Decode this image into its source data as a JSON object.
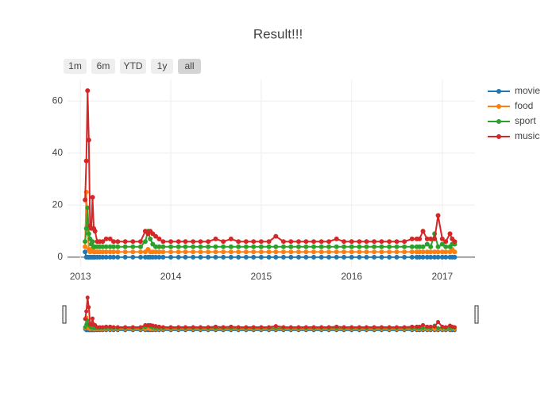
{
  "chart_data": {
    "type": "line",
    "title": "Result!!!",
    "range_buttons": [
      "1m",
      "6m",
      "YTD",
      "1y",
      "all"
    ],
    "active_button": 4,
    "xlim": [
      "2012-11-10",
      "2017-05-13"
    ],
    "xticks": [
      {
        "value": "2013-01-01",
        "label": "2013"
      },
      {
        "value": "2014-01-01",
        "label": "2014"
      },
      {
        "value": "2015-01-01",
        "label": "2015"
      },
      {
        "value": "2016-01-01",
        "label": "2016"
      },
      {
        "value": "2017-01-01",
        "label": "2017"
      }
    ],
    "ylim": [
      -3.4,
      68.3
    ],
    "yticks": [
      0,
      20,
      40,
      60
    ],
    "grid": true,
    "x": [
      "2013-01-20",
      "2013-01-25",
      "2013-01-30",
      "2013-02-04",
      "2013-02-09",
      "2013-02-14",
      "2013-02-19",
      "2013-02-24",
      "2013-03-01",
      "2013-03-10",
      "2013-03-20",
      "2013-04-01",
      "2013-04-15",
      "2013-05-01",
      "2013-05-15",
      "2013-06-01",
      "2013-07-01",
      "2013-08-01",
      "2013-09-01",
      "2013-09-20",
      "2013-10-01",
      "2013-10-10",
      "2013-10-20",
      "2013-11-01",
      "2013-11-15",
      "2013-12-01",
      "2014-01-01",
      "2014-02-01",
      "2014-03-01",
      "2014-04-01",
      "2014-05-01",
      "2014-06-01",
      "2014-07-01",
      "2014-08-01",
      "2014-09-01",
      "2014-10-01",
      "2014-11-01",
      "2014-12-01",
      "2015-01-01",
      "2015-02-01",
      "2015-03-01",
      "2015-04-01",
      "2015-05-01",
      "2015-06-01",
      "2015-07-01",
      "2015-08-01",
      "2015-09-01",
      "2015-10-01",
      "2015-11-01",
      "2015-12-01",
      "2016-01-01",
      "2016-02-01",
      "2016-03-01",
      "2016-04-01",
      "2016-05-01",
      "2016-06-01",
      "2016-07-01",
      "2016-08-01",
      "2016-09-01",
      "2016-09-20",
      "2016-10-01",
      "2016-10-15",
      "2016-11-01",
      "2016-11-15",
      "2016-12-01",
      "2016-12-15",
      "2017-01-01",
      "2017-01-15",
      "2017-02-01",
      "2017-02-10",
      "2017-02-20"
    ],
    "series": [
      {
        "name": "movie",
        "color": "#1f77b4",
        "values": [
          2,
          0,
          0,
          0,
          0,
          0,
          0,
          0,
          0,
          0,
          0,
          0,
          0,
          0,
          0,
          0,
          0,
          0,
          0,
          0,
          0,
          0,
          0,
          0,
          0,
          0,
          0,
          0,
          0,
          0,
          0,
          0,
          0,
          0,
          0,
          0,
          0,
          0,
          0,
          0,
          0,
          0,
          0,
          0,
          0,
          0,
          0,
          0,
          0,
          0,
          0,
          0,
          0,
          0,
          0,
          0,
          0,
          0,
          0,
          0,
          0,
          0,
          0,
          0,
          0,
          0,
          0,
          0,
          0,
          0,
          0
        ]
      },
      {
        "name": "food",
        "color": "#ff7f0e",
        "values": [
          4,
          25,
          12,
          3,
          2,
          3,
          3,
          2,
          2,
          2,
          2,
          2,
          2,
          2,
          2,
          2,
          2,
          2,
          2,
          2,
          3,
          2,
          2,
          2,
          2,
          2,
          2,
          2,
          2,
          2,
          2,
          2,
          2,
          2,
          2,
          2,
          2,
          2,
          2,
          2,
          2,
          2,
          2,
          2,
          2,
          2,
          2,
          2,
          2,
          2,
          2,
          2,
          2,
          2,
          2,
          2,
          2,
          2,
          2,
          2,
          2,
          2,
          2,
          2,
          2,
          2,
          2,
          2,
          2,
          3,
          2
        ]
      },
      {
        "name": "sport",
        "color": "#2ca02c",
        "values": [
          6,
          11,
          19,
          9,
          7,
          5,
          6,
          4,
          4,
          4,
          4,
          4,
          4,
          4,
          4,
          4,
          4,
          4,
          4,
          6,
          10,
          7,
          5,
          4,
          4,
          4,
          4,
          4,
          4,
          4,
          4,
          4,
          4,
          4,
          4,
          4,
          4,
          4,
          4,
          4,
          4,
          4,
          4,
          4,
          4,
          4,
          4,
          4,
          4,
          4,
          4,
          4,
          4,
          4,
          4,
          4,
          4,
          4,
          4,
          4,
          4,
          4,
          5,
          4,
          9,
          4,
          5,
          4,
          4,
          5,
          5
        ]
      },
      {
        "name": "music",
        "color": "#d62728",
        "values": [
          22,
          37,
          64,
          45,
          12,
          11,
          23,
          11,
          10,
          6,
          6,
          6,
          7,
          7,
          6,
          6,
          6,
          6,
          6,
          10,
          9,
          10,
          9,
          8,
          7,
          6,
          6,
          6,
          6,
          6,
          6,
          6,
          7,
          6,
          7,
          6,
          6,
          6,
          6,
          6,
          8,
          6,
          6,
          6,
          6,
          6,
          6,
          6,
          7,
          6,
          6,
          6,
          6,
          6,
          6,
          6,
          6,
          6,
          7,
          7,
          7,
          10,
          7,
          7,
          7,
          16,
          7,
          6,
          9,
          7,
          6
        ]
      }
    ]
  }
}
